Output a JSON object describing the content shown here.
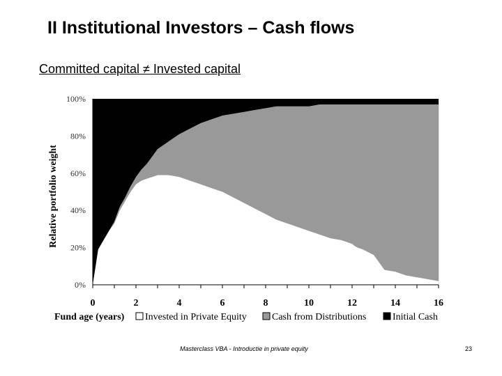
{
  "slide": {
    "title": "II  Institutional Investors – Cash flows",
    "subtitle": "Committed capital ≠ Invested capital",
    "footer": "Masterclass VBA - Introductie in private equity",
    "page_number": "23"
  },
  "chart_data": {
    "type": "area",
    "stacked": true,
    "title": "",
    "xlabel": "Fund age (years)",
    "ylabel": "Relative portfolio weight",
    "xlim": [
      0,
      16
    ],
    "ylim": [
      0,
      100
    ],
    "xticks": [
      "0",
      "2",
      "4",
      "6",
      "8",
      "10",
      "12",
      "14",
      "16"
    ],
    "yticks": [
      "0%",
      "20%",
      "40%",
      "60%",
      "80%",
      "100%"
    ],
    "legend_position": "bottom",
    "x": [
      0,
      0.25,
      0.5,
      0.75,
      1,
      1.25,
      1.5,
      1.75,
      2,
      2.25,
      2.5,
      2.75,
      3,
      3.25,
      3.5,
      4,
      4.5,
      5,
      5.5,
      6,
      6.5,
      7,
      7.5,
      8,
      8.5,
      9,
      9.5,
      10,
      10.5,
      11,
      11.5,
      12,
      12.1,
      12.25,
      12.5,
      13,
      13.5,
      14,
      14.5,
      15,
      15.5,
      16
    ],
    "series": [
      {
        "name": "Invested in Private Equity",
        "color": "#ffffff",
        "values": [
          0,
          19,
          24,
          29,
          33,
          40,
          45,
          50,
          54,
          56,
          57,
          58,
          59,
          59,
          59,
          58,
          56,
          54,
          52,
          50,
          47,
          44,
          41,
          38,
          35,
          33,
          31,
          29,
          27,
          25,
          24,
          22,
          21,
          20,
          19,
          16,
          8,
          7,
          5,
          4,
          3,
          2
        ]
      },
      {
        "name": "Cash from Distributions",
        "color": "#999999",
        "values": [
          0,
          0,
          0,
          0,
          1,
          2,
          2,
          3,
          4,
          6,
          8,
          11,
          14,
          16,
          18,
          23,
          28,
          33,
          37,
          41,
          45,
          49,
          53,
          57,
          61,
          63,
          65,
          67,
          70,
          72,
          73,
          75,
          76,
          77,
          78,
          81,
          89,
          90,
          92,
          93,
          94,
          95
        ]
      },
      {
        "name": "Initial Cash",
        "color": "#000000",
        "values": [
          100,
          81,
          76,
          71,
          66,
          58,
          53,
          47,
          42,
          38,
          35,
          31,
          27,
          25,
          23,
          19,
          16,
          13,
          11,
          9,
          8,
          7,
          6,
          5,
          4,
          4,
          4,
          4,
          3,
          3,
          3,
          3,
          3,
          3,
          3,
          3,
          3,
          3,
          3,
          3,
          3,
          3
        ]
      }
    ]
  }
}
